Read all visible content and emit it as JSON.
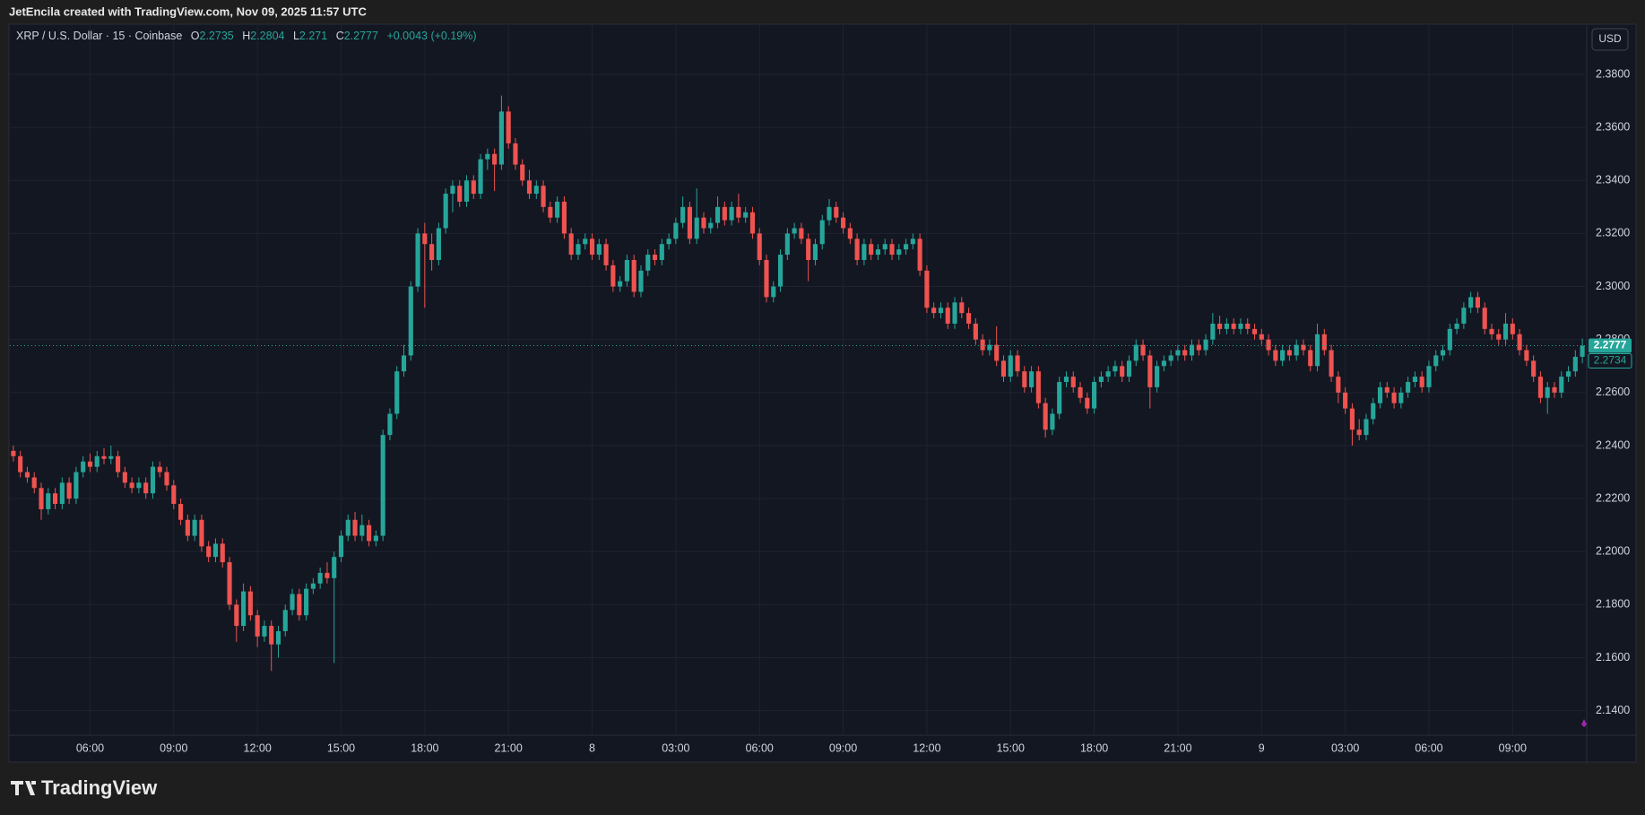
{
  "header": {
    "credit": "JetEncila created with TradingView.com, Nov 09, 2025 11:57 UTC"
  },
  "footer": {
    "logo": "TradingView"
  },
  "chart_data": {
    "type": "candlestick",
    "symbol": "XRP / U.S. Dollar",
    "interval": 15,
    "exchange": "Coinbase",
    "ohlc_labels": [
      "O",
      "H",
      "L",
      "C"
    ],
    "change": "+0.0043 (+0.19%)",
    "currency": "USD",
    "bid_price": 2.2734,
    "up_color": "#26a69a",
    "down_color": "#ef5350",
    "grid": true,
    "xlim": [
      3.125,
      59.625
    ],
    "xticks": [
      {
        "value": 6,
        "label": "06:00"
      },
      {
        "value": 9,
        "label": "09:00"
      },
      {
        "value": 12,
        "label": "12:00"
      },
      {
        "value": 15,
        "label": "15:00"
      },
      {
        "value": 18,
        "label": "18:00"
      },
      {
        "value": 21,
        "label": "21:00"
      },
      {
        "value": 24,
        "label": "8"
      },
      {
        "value": 27,
        "label": "03:00"
      },
      {
        "value": 30,
        "label": "06:00"
      },
      {
        "value": 33,
        "label": "09:00"
      },
      {
        "value": 36,
        "label": "12:00"
      },
      {
        "value": 39,
        "label": "15:00"
      },
      {
        "value": 42,
        "label": "18:00"
      },
      {
        "value": 45,
        "label": "21:00"
      },
      {
        "value": 48,
        "label": "9"
      },
      {
        "value": 51,
        "label": "03:00"
      },
      {
        "value": 54,
        "label": "06:00"
      },
      {
        "value": 57,
        "label": "09:00"
      }
    ],
    "ylim": [
      2.1311,
      2.3986
    ],
    "yticks": [
      {
        "value": 2.14,
        "label": "2.1400"
      },
      {
        "value": 2.16,
        "label": "2.1600"
      },
      {
        "value": 2.18,
        "label": "2.1800"
      },
      {
        "value": 2.2,
        "label": "2.2000"
      },
      {
        "value": 2.22,
        "label": "2.2200"
      },
      {
        "value": 2.24,
        "label": "2.2400"
      },
      {
        "value": 2.26,
        "label": "2.2600"
      },
      {
        "value": 2.28,
        "label": "2.2800"
      },
      {
        "value": 2.3,
        "label": "2.3000"
      },
      {
        "value": 2.32,
        "label": "2.3200"
      },
      {
        "value": 2.34,
        "label": "2.3400"
      },
      {
        "value": 2.36,
        "label": "2.3600"
      },
      {
        "value": 2.38,
        "label": "2.3800"
      }
    ],
    "candles": [
      [
        2.238,
        2.24,
        2.234,
        2.236
      ],
      [
        2.236,
        2.238,
        2.228,
        2.23
      ],
      [
        2.23,
        2.232,
        2.226,
        2.228
      ],
      [
        2.228,
        2.23,
        2.222,
        2.224
      ],
      [
        2.224,
        2.226,
        2.212,
        2.216
      ],
      [
        2.216,
        2.224,
        2.214,
        2.222
      ],
      [
        2.222,
        2.224,
        2.216,
        2.218
      ],
      [
        2.218,
        2.228,
        2.216,
        2.226
      ],
      [
        2.226,
        2.228,
        2.218,
        2.22
      ],
      [
        2.22,
        2.232,
        2.218,
        2.23
      ],
      [
        2.23,
        2.236,
        2.228,
        2.234
      ],
      [
        2.234,
        2.237,
        2.23,
        2.232
      ],
      [
        2.232,
        2.238,
        2.23,
        2.236
      ],
      [
        2.236,
        2.239,
        2.233,
        2.235
      ],
      [
        2.235,
        2.24,
        2.233,
        2.236
      ],
      [
        2.236,
        2.238,
        2.228,
        2.23
      ],
      [
        2.23,
        2.232,
        2.224,
        2.226
      ],
      [
        2.226,
        2.228,
        2.222,
        2.224
      ],
      [
        2.224,
        2.228,
        2.222,
        2.226
      ],
      [
        2.226,
        2.228,
        2.22,
        2.222
      ],
      [
        2.222,
        2.234,
        2.22,
        2.232
      ],
      [
        2.232,
        2.234,
        2.228,
        2.23
      ],
      [
        2.23,
        2.232,
        2.223,
        2.225
      ],
      [
        2.225,
        2.227,
        2.216,
        2.218
      ],
      [
        2.218,
        2.22,
        2.21,
        2.212
      ],
      [
        2.212,
        2.214,
        2.204,
        2.206
      ],
      [
        2.206,
        2.214,
        2.204,
        2.212
      ],
      [
        2.212,
        2.214,
        2.2,
        2.202
      ],
      [
        2.202,
        2.204,
        2.196,
        2.198
      ],
      [
        2.198,
        2.205,
        2.196,
        2.203
      ],
      [
        2.203,
        2.205,
        2.194,
        2.196
      ],
      [
        2.196,
        2.198,
        2.178,
        2.18
      ],
      [
        2.18,
        2.182,
        2.166,
        2.172
      ],
      [
        2.172,
        2.188,
        2.17,
        2.185
      ],
      [
        2.185,
        2.187,
        2.174,
        2.176
      ],
      [
        2.176,
        2.178,
        2.164,
        2.168
      ],
      [
        2.168,
        2.174,
        2.166,
        2.172
      ],
      [
        2.172,
        2.174,
        2.155,
        2.165
      ],
      [
        2.165,
        2.172,
        2.16,
        2.17
      ],
      [
        2.17,
        2.18,
        2.168,
        2.178
      ],
      [
        2.178,
        2.186,
        2.176,
        2.184
      ],
      [
        2.184,
        2.186,
        2.174,
        2.176
      ],
      [
        2.176,
        2.188,
        2.174,
        2.186
      ],
      [
        2.186,
        2.19,
        2.184,
        2.188
      ],
      [
        2.188,
        2.194,
        2.186,
        2.192
      ],
      [
        2.192,
        2.196,
        2.188,
        2.19
      ],
      [
        2.19,
        2.2,
        2.158,
        2.198
      ],
      [
        2.198,
        2.208,
        2.196,
        2.206
      ],
      [
        2.206,
        2.214,
        2.204,
        2.212
      ],
      [
        2.212,
        2.215,
        2.204,
        2.206
      ],
      [
        2.206,
        2.214,
        2.204,
        2.21
      ],
      [
        2.21,
        2.212,
        2.202,
        2.204
      ],
      [
        2.204,
        2.208,
        2.202,
        2.206
      ],
      [
        2.206,
        2.246,
        2.204,
        2.244
      ],
      [
        2.244,
        2.254,
        2.242,
        2.252
      ],
      [
        2.252,
        2.27,
        2.25,
        2.268
      ],
      [
        2.268,
        2.278,
        2.266,
        2.274
      ],
      [
        2.274,
        2.302,
        2.272,
        2.3
      ],
      [
        2.3,
        2.322,
        2.298,
        2.32
      ],
      [
        2.32,
        2.324,
        2.292,
        2.316
      ],
      [
        2.316,
        2.32,
        2.306,
        2.31
      ],
      [
        2.31,
        2.324,
        2.308,
        2.322
      ],
      [
        2.322,
        2.337,
        2.32,
        2.335
      ],
      [
        2.335,
        2.34,
        2.328,
        2.338
      ],
      [
        2.338,
        2.34,
        2.33,
        2.332
      ],
      [
        2.332,
        2.342,
        2.33,
        2.34
      ],
      [
        2.34,
        2.342,
        2.333,
        2.335
      ],
      [
        2.335,
        2.35,
        2.333,
        2.348
      ],
      [
        2.348,
        2.352,
        2.344,
        2.35
      ],
      [
        2.35,
        2.352,
        2.336,
        2.346
      ],
      [
        2.346,
        2.372,
        2.344,
        2.366
      ],
      [
        2.366,
        2.368,
        2.352,
        2.354
      ],
      [
        2.354,
        2.356,
        2.344,
        2.346
      ],
      [
        2.346,
        2.348,
        2.338,
        2.34
      ],
      [
        2.34,
        2.344,
        2.333,
        2.335
      ],
      [
        2.335,
        2.34,
        2.333,
        2.338
      ],
      [
        2.338,
        2.34,
        2.328,
        2.33
      ],
      [
        2.33,
        2.332,
        2.324,
        2.326
      ],
      [
        2.326,
        2.334,
        2.324,
        2.332
      ],
      [
        2.332,
        2.334,
        2.318,
        2.32
      ],
      [
        2.32,
        2.322,
        2.31,
        2.312
      ],
      [
        2.312,
        2.318,
        2.31,
        2.316
      ],
      [
        2.316,
        2.32,
        2.314,
        2.318
      ],
      [
        2.318,
        2.32,
        2.31,
        2.312
      ],
      [
        2.312,
        2.318,
        2.31,
        2.316
      ],
      [
        2.316,
        2.318,
        2.306,
        2.308
      ],
      [
        2.308,
        2.31,
        2.298,
        2.3
      ],
      [
        2.3,
        2.304,
        2.298,
        2.302
      ],
      [
        2.302,
        2.312,
        2.3,
        2.31
      ],
      [
        2.31,
        2.312,
        2.296,
        2.298
      ],
      [
        2.298,
        2.308,
        2.296,
        2.306
      ],
      [
        2.306,
        2.314,
        2.304,
        2.312
      ],
      [
        2.312,
        2.314,
        2.308,
        2.31
      ],
      [
        2.31,
        2.318,
        2.308,
        2.316
      ],
      [
        2.316,
        2.32,
        2.314,
        2.318
      ],
      [
        2.318,
        2.326,
        2.316,
        2.324
      ],
      [
        2.324,
        2.334,
        2.322,
        2.33
      ],
      [
        2.33,
        2.332,
        2.316,
        2.318
      ],
      [
        2.318,
        2.337,
        2.316,
        2.326
      ],
      [
        2.326,
        2.328,
        2.32,
        2.322
      ],
      [
        2.322,
        2.326,
        2.32,
        2.324
      ],
      [
        2.324,
        2.334,
        2.322,
        2.33
      ],
      [
        2.33,
        2.332,
        2.323,
        2.325
      ],
      [
        2.325,
        2.332,
        2.323,
        2.33
      ],
      [
        2.33,
        2.335,
        2.324,
        2.326
      ],
      [
        2.326,
        2.33,
        2.324,
        2.328
      ],
      [
        2.328,
        2.33,
        2.318,
        2.32
      ],
      [
        2.32,
        2.322,
        2.308,
        2.31
      ],
      [
        2.31,
        2.312,
        2.294,
        2.296
      ],
      [
        2.296,
        2.302,
        2.294,
        2.3
      ],
      [
        2.3,
        2.314,
        2.298,
        2.312
      ],
      [
        2.312,
        2.322,
        2.31,
        2.32
      ],
      [
        2.32,
        2.324,
        2.318,
        2.322
      ],
      [
        2.322,
        2.324,
        2.316,
        2.318
      ],
      [
        2.318,
        2.32,
        2.302,
        2.31
      ],
      [
        2.31,
        2.318,
        2.308,
        2.316
      ],
      [
        2.316,
        2.327,
        2.314,
        2.325
      ],
      [
        2.325,
        2.333,
        2.323,
        2.33
      ],
      [
        2.33,
        2.332,
        2.324,
        2.326
      ],
      [
        2.326,
        2.328,
        2.32,
        2.322
      ],
      [
        2.322,
        2.324,
        2.316,
        2.318
      ],
      [
        2.318,
        2.32,
        2.308,
        2.31
      ],
      [
        2.31,
        2.318,
        2.308,
        2.316
      ],
      [
        2.316,
        2.318,
        2.31,
        2.312
      ],
      [
        2.312,
        2.316,
        2.31,
        2.314
      ],
      [
        2.314,
        2.318,
        2.312,
        2.316
      ],
      [
        2.316,
        2.318,
        2.31,
        2.312
      ],
      [
        2.312,
        2.316,
        2.31,
        2.314
      ],
      [
        2.314,
        2.318,
        2.312,
        2.316
      ],
      [
        2.316,
        2.32,
        2.314,
        2.318
      ],
      [
        2.318,
        2.32,
        2.304,
        2.306
      ],
      [
        2.306,
        2.308,
        2.29,
        2.292
      ],
      [
        2.292,
        2.294,
        2.288,
        2.29
      ],
      [
        2.29,
        2.294,
        2.288,
        2.292
      ],
      [
        2.292,
        2.294,
        2.284,
        2.286
      ],
      [
        2.286,
        2.296,
        2.284,
        2.294
      ],
      [
        2.294,
        2.296,
        2.288,
        2.29
      ],
      [
        2.29,
        2.292,
        2.284,
        2.286
      ],
      [
        2.286,
        2.288,
        2.278,
        2.28
      ],
      [
        2.28,
        2.282,
        2.274,
        2.276
      ],
      [
        2.276,
        2.28,
        2.274,
        2.278
      ],
      [
        2.278,
        2.285,
        2.27,
        2.272
      ],
      [
        2.272,
        2.274,
        2.264,
        2.266
      ],
      [
        2.266,
        2.276,
        2.264,
        2.274
      ],
      [
        2.274,
        2.276,
        2.266,
        2.268
      ],
      [
        2.268,
        2.27,
        2.26,
        2.262
      ],
      [
        2.262,
        2.27,
        2.26,
        2.268
      ],
      [
        2.268,
        2.27,
        2.254,
        2.256
      ],
      [
        2.256,
        2.258,
        2.243,
        2.246
      ],
      [
        2.246,
        2.254,
        2.244,
        2.252
      ],
      [
        2.252,
        2.266,
        2.25,
        2.264
      ],
      [
        2.264,
        2.268,
        2.262,
        2.266
      ],
      [
        2.266,
        2.268,
        2.26,
        2.262
      ],
      [
        2.262,
        2.264,
        2.256,
        2.258
      ],
      [
        2.258,
        2.26,
        2.252,
        2.254
      ],
      [
        2.254,
        2.266,
        2.252,
        2.264
      ],
      [
        2.264,
        2.268,
        2.262,
        2.266
      ],
      [
        2.266,
        2.27,
        2.264,
        2.268
      ],
      [
        2.268,
        2.272,
        2.266,
        2.27
      ],
      [
        2.27,
        2.272,
        2.264,
        2.266
      ],
      [
        2.266,
        2.274,
        2.264,
        2.272
      ],
      [
        2.272,
        2.28,
        2.27,
        2.278
      ],
      [
        2.278,
        2.28,
        2.272,
        2.274
      ],
      [
        2.274,
        2.276,
        2.254,
        2.262
      ],
      [
        2.262,
        2.272,
        2.26,
        2.27
      ],
      [
        2.27,
        2.274,
        2.268,
        2.272
      ],
      [
        2.272,
        2.276,
        2.27,
        2.274
      ],
      [
        2.274,
        2.278,
        2.272,
        2.276
      ],
      [
        2.276,
        2.278,
        2.272,
        2.274
      ],
      [
        2.274,
        2.28,
        2.272,
        2.278
      ],
      [
        2.278,
        2.28,
        2.274,
        2.276
      ],
      [
        2.276,
        2.282,
        2.274,
        2.28
      ],
      [
        2.28,
        2.29,
        2.278,
        2.286
      ],
      [
        2.286,
        2.289,
        2.282,
        2.284
      ],
      [
        2.284,
        2.288,
        2.282,
        2.286
      ],
      [
        2.286,
        2.288,
        2.282,
        2.284
      ],
      [
        2.284,
        2.288,
        2.282,
        2.286
      ],
      [
        2.286,
        2.288,
        2.282,
        2.284
      ],
      [
        2.284,
        2.286,
        2.28,
        2.282
      ],
      [
        2.282,
        2.284,
        2.278,
        2.28
      ],
      [
        2.28,
        2.282,
        2.274,
        2.276
      ],
      [
        2.276,
        2.278,
        2.27,
        2.272
      ],
      [
        2.272,
        2.278,
        2.27,
        2.276
      ],
      [
        2.276,
        2.278,
        2.272,
        2.274
      ],
      [
        2.274,
        2.28,
        2.272,
        2.278
      ],
      [
        2.278,
        2.28,
        2.274,
        2.276
      ],
      [
        2.276,
        2.278,
        2.268,
        2.27
      ],
      [
        2.27,
        2.286,
        2.268,
        2.282
      ],
      [
        2.282,
        2.284,
        2.274,
        2.276
      ],
      [
        2.276,
        2.278,
        2.264,
        2.266
      ],
      [
        2.266,
        2.268,
        2.256,
        2.26
      ],
      [
        2.26,
        2.262,
        2.252,
        2.254
      ],
      [
        2.254,
        2.256,
        2.24,
        2.246
      ],
      [
        2.246,
        2.25,
        2.242,
        2.244
      ],
      [
        2.244,
        2.252,
        2.242,
        2.25
      ],
      [
        2.25,
        2.258,
        2.248,
        2.256
      ],
      [
        2.256,
        2.264,
        2.254,
        2.262
      ],
      [
        2.262,
        2.264,
        2.258,
        2.26
      ],
      [
        2.26,
        2.262,
        2.254,
        2.256
      ],
      [
        2.256,
        2.262,
        2.254,
        2.26
      ],
      [
        2.26,
        2.266,
        2.258,
        2.264
      ],
      [
        2.264,
        2.268,
        2.262,
        2.266
      ],
      [
        2.266,
        2.268,
        2.26,
        2.262
      ],
      [
        2.262,
        2.272,
        2.26,
        2.27
      ],
      [
        2.27,
        2.276,
        2.268,
        2.274
      ],
      [
        2.274,
        2.278,
        2.272,
        2.276
      ],
      [
        2.276,
        2.286,
        2.274,
        2.284
      ],
      [
        2.284,
        2.288,
        2.282,
        2.286
      ],
      [
        2.286,
        2.294,
        2.284,
        2.292
      ],
      [
        2.292,
        2.298,
        2.29,
        2.296
      ],
      [
        2.296,
        2.298,
        2.29,
        2.292
      ],
      [
        2.292,
        2.294,
        2.282,
        2.284
      ],
      [
        2.284,
        2.286,
        2.28,
        2.282
      ],
      [
        2.282,
        2.284,
        2.278,
        2.28
      ],
      [
        2.28,
        2.29,
        2.278,
        2.286
      ],
      [
        2.286,
        2.288,
        2.28,
        2.282
      ],
      [
        2.282,
        2.284,
        2.274,
        2.276
      ],
      [
        2.276,
        2.278,
        2.27,
        2.272
      ],
      [
        2.272,
        2.274,
        2.264,
        2.266
      ],
      [
        2.266,
        2.268,
        2.256,
        2.258
      ],
      [
        2.258,
        2.264,
        2.252,
        2.262
      ],
      [
        2.262,
        2.264,
        2.258,
        2.26
      ],
      [
        2.26,
        2.268,
        2.258,
        2.266
      ],
      [
        2.266,
        2.27,
        2.264,
        2.268
      ],
      [
        2.268,
        2.276,
        2.266,
        2.2735
      ],
      [
        2.2735,
        2.2804,
        2.271,
        2.2777
      ]
    ]
  }
}
